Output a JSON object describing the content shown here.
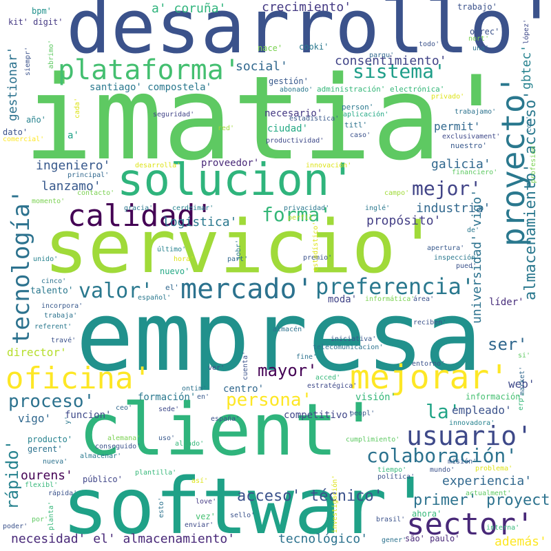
{
  "words": [
    {
      "t": "imatia'",
      "c": "#5ec962"
    },
    {
      "t": "empresa",
      "c": "#21918c"
    },
    {
      "t": "desarrollo'",
      "c": "#3b528b"
    },
    {
      "t": "servicio'",
      "c": "#a0da39"
    },
    {
      "t": "client'",
      "c": "#2fb47c"
    },
    {
      "t": "softwar'",
      "c": "#1fa187"
    },
    {
      "t": "solucion'",
      "c": "#2fb47c"
    },
    {
      "t": "oficina'",
      "c": "#fde725"
    },
    {
      "t": "mejorar'",
      "c": "#fde725"
    },
    {
      "t": "plataforma'",
      "c": "#44bf70"
    },
    {
      "t": "calidad'",
      "c": "#440154"
    },
    {
      "t": "proyecto'",
      "c": "#2a788e"
    },
    {
      "t": "mercado'",
      "c": "#2c728e"
    },
    {
      "t": "preferencia'",
      "c": "#2a788e"
    },
    {
      "t": "usuario'",
      "c": "#3e4989"
    },
    {
      "t": "sector'",
      "c": "#482878"
    },
    {
      "t": "colaboración'",
      "c": "#2c728e"
    },
    {
      "t": "sistema'",
      "c": "#1f9e89"
    },
    {
      "t": "mejor'",
      "c": "#414487"
    },
    {
      "t": "forma'",
      "c": "#35b779"
    },
    {
      "t": "valor'",
      "c": "#2a788e"
    },
    {
      "t": "tecnología'",
      "c": "#2c728e"
    },
    {
      "t": "almacenamiento' acceso'",
      "c": "#2a788e"
    },
    {
      "t": "proceso'",
      "c": "#2c728e"
    },
    {
      "t": "persona'",
      "c": "#fde725"
    },
    {
      "t": "mayor'",
      "c": "#440154"
    },
    {
      "t": "rápido'",
      "c": "#26828e"
    },
    {
      "t": "acceso' técnico'",
      "c": "#3b528b"
    },
    {
      "t": "primer' proyecto'",
      "c": "#2c728e"
    },
    {
      "t": "la'",
      "c": "#20a486"
    },
    {
      "t": "ser'",
      "c": "#31688e"
    },
    {
      "t": "galicia'",
      "c": "#31688e"
    },
    {
      "t": "industria'",
      "c": "#31688e"
    },
    {
      "t": "propósito'",
      "c": "#433e85"
    },
    {
      "t": "logística'",
      "c": "#2a788e"
    },
    {
      "t": "ingeniero'",
      "c": "#38598c"
    },
    {
      "t": "lanzamo'",
      "c": "#38598c"
    },
    {
      "t": "consentimiento'",
      "c": "#414487"
    },
    {
      "t": "social'",
      "c": "#31688e"
    },
    {
      "t": "crecimiento'",
      "c": "#443983"
    },
    {
      "t": "a' coruña'",
      "c": "#2fb47c"
    },
    {
      "t": "gbtec'",
      "c": "#26828e"
    },
    {
      "t": "gestionar'",
      "c": "#2c728e"
    },
    {
      "t": "universidad' vigo'",
      "c": "#2c728e"
    },
    {
      "t": "ourens'",
      "c": "#440154"
    },
    {
      "t": "experiencia'",
      "c": "#31688e"
    },
    {
      "t": "necesidad' el' almacenamiento'",
      "c": "#482878"
    },
    {
      "t": "tecnológico'",
      "c": "#2c728e"
    },
    {
      "t": "además'",
      "c": "#fde725"
    },
    {
      "t": "empleado'",
      "c": "#3b528b"
    },
    {
      "t": "web'",
      "c": "#3e4989"
    },
    {
      "t": "director'",
      "c": "#b5de2b"
    },
    {
      "t": "vigo'",
      "c": "#31688e"
    },
    {
      "t": "permit'",
      "c": "#31688e"
    },
    {
      "t": "santiago' compostela'",
      "c": "#2a788e"
    },
    {
      "t": "necesario'",
      "c": "#443983"
    },
    {
      "t": "ciudad'",
      "c": "#23a983"
    },
    {
      "t": "proveedor'",
      "c": "#482878"
    },
    {
      "t": "talento'",
      "c": "#2a788e"
    },
    {
      "t": "nuevo'",
      "c": "#22a884"
    },
    {
      "t": "moda'",
      "c": "#414487"
    },
    {
      "t": "formación'",
      "c": "#2a788e"
    },
    {
      "t": "centro'",
      "c": "#31688e"
    },
    {
      "t": "visión'",
      "c": "#35b779"
    },
    {
      "t": "competitivo'",
      "c": "#404688"
    },
    {
      "t": "funcion'",
      "c": "#3e4989"
    },
    {
      "t": "información'",
      "c": "#44bf70"
    },
    {
      "t": "líder'",
      "c": "#472d7b"
    },
    {
      "t": "bpm'",
      "c": "#21918c"
    },
    {
      "t": "kit' digit'",
      "c": "#443983"
    },
    {
      "t": "nace'",
      "c": "#7ad151"
    },
    {
      "t": "cooki'",
      "c": "#2a788e"
    },
    {
      "t": "trabajo'",
      "c": "#3b528b"
    },
    {
      "t": "gestión'",
      "c": "#38598c"
    },
    {
      "t": "administración' electrónica'",
      "c": "#35b779"
    },
    {
      "t": "año'",
      "c": "#26828e"
    },
    {
      "t": "a'",
      "c": "#1fa187"
    },
    {
      "t": "dato'",
      "c": "#3b528b"
    },
    {
      "t": "ofrec'",
      "c": "#3b528b"
    },
    {
      "t": "parqu'",
      "c": "#31688e"
    },
    {
      "t": "todo'",
      "c": "#3b528b"
    },
    {
      "t": "nort'",
      "c": "#7ad151"
    },
    {
      "t": "una'",
      "c": "#2c728e"
    },
    {
      "t": "person'",
      "c": "#2a788e"
    },
    {
      "t": "aplicación'",
      "c": "#22a884"
    },
    {
      "t": "abonado'",
      "c": "#2a788e"
    },
    {
      "t": "estadística'",
      "c": "#38598c"
    },
    {
      "t": "titl'",
      "c": "#2c728e"
    },
    {
      "t": "caso'",
      "c": "#3b528b"
    },
    {
      "t": "productividad'",
      "c": "#3e4989"
    },
    {
      "t": "seguridad'",
      "c": "#414487"
    },
    {
      "t": "red'",
      "c": "#a0da39"
    },
    {
      "t": "privado'",
      "c": "#dde318"
    },
    {
      "t": "trabajamo'",
      "c": "#2c728e"
    },
    {
      "t": "exclusivament'",
      "c": "#3e4989"
    },
    {
      "t": "nuestro'",
      "c": "#38598c"
    },
    {
      "t": "innovación'",
      "c": "#dde318"
    },
    {
      "t": "financiero'",
      "c": "#5ec962"
    },
    {
      "t": "campo'",
      "c": "#a0da39"
    },
    {
      "t": "principal'",
      "c": "#31688e"
    },
    {
      "t": "contacto'",
      "c": "#7ad151"
    },
    {
      "t": "desarrolla'",
      "c": "#dde318"
    },
    {
      "t": "comercial'",
      "c": "#fde725"
    },
    {
      "t": "momento'",
      "c": "#7ad151"
    },
    {
      "t": "gracia'",
      "c": "#2a788e"
    },
    {
      "t": "cerdeimar'",
      "c": "#26828e"
    },
    {
      "t": "privacidad'",
      "c": "#2a788e"
    },
    {
      "t": "inglé'",
      "c": "#2a788e"
    },
    {
      "t": "perfil'",
      "c": "#bddf26"
    },
    {
      "t": "de'",
      "c": "#2a788e"
    },
    {
      "t": "apertura'",
      "c": "#38598c"
    },
    {
      "t": "inspección'",
      "c": "#2a788e"
    },
    {
      "t": "pued'",
      "c": "#3b528b"
    },
    {
      "t": "premio'",
      "c": "#3b528b"
    },
    {
      "t": "último'",
      "c": "#26828e"
    },
    {
      "t": "hora'",
      "c": "#dde318"
    },
    {
      "t": "part'",
      "c": "#31688e"
    },
    {
      "t": "unido'",
      "c": "#26828e"
    },
    {
      "t": "cinco'",
      "c": "#2c728e"
    },
    {
      "t": "el'",
      "c": "#31688e"
    },
    {
      "t": "español'",
      "c": "#2a788e"
    },
    {
      "t": "informática'",
      "c": "#7ad151"
    },
    {
      "t": "área'",
      "c": "#3b528b"
    },
    {
      "t": "incorpora'",
      "c": "#38598c"
    },
    {
      "t": "trabaja'",
      "c": "#2c728e"
    },
    {
      "t": "referent'",
      "c": "#2a788e"
    },
    {
      "t": "reciben'",
      "c": "#3b528b"
    },
    {
      "t": "almacén'",
      "c": "#2c728e"
    },
    {
      "t": "iniciativa'",
      "c": "#38598c"
    },
    {
      "t": "telecomunicacion'",
      "c": "#2c728e"
    },
    {
      "t": "travé'",
      "c": "#3b528b"
    },
    {
      "t": "fine'",
      "c": "#2c728e"
    },
    {
      "t": "si'",
      "c": "#5ec962"
    },
    {
      "t": "ver'",
      "c": "#3e4989"
    },
    {
      "t": "acced'",
      "c": "#35b779"
    },
    {
      "t": "estratégica'",
      "c": "#3e4989"
    },
    {
      "t": "entorno'",
      "c": "#3b528b"
    },
    {
      "t": "market'",
      "c": "#31688e"
    },
    {
      "t": "ontim'",
      "c": "#2c728e"
    },
    {
      "t": "en'",
      "c": "#38598c"
    },
    {
      "t": "ceo'",
      "c": "#31688e"
    },
    {
      "t": "sede'",
      "c": "#3e4989"
    },
    {
      "t": "españa'",
      "c": "#3b528b"
    },
    {
      "t": "peopl'",
      "c": "#38598c"
    },
    {
      "t": "innovadora'",
      "c": "#26828e"
    },
    {
      "t": "producto'",
      "c": "#26828e"
    },
    {
      "t": "gerent'",
      "c": "#2c728e"
    },
    {
      "t": "alemana'",
      "c": "#7ad151"
    },
    {
      "t": "conseguido'",
      "c": "#3b528b"
    },
    {
      "t": "almacenar'",
      "c": "#2a788e"
    },
    {
      "t": "uso'",
      "c": "#38598c"
    },
    {
      "t": "aliado'",
      "c": "#35b779"
    },
    {
      "t": "cumplimiento'",
      "c": "#5ec962"
    },
    {
      "t": "misión'",
      "c": "#38598c"
    },
    {
      "t": "problema'",
      "c": "#dde318"
    },
    {
      "t": "nueva'",
      "c": "#2c728e"
    },
    {
      "t": "público'",
      "c": "#404688"
    },
    {
      "t": "plantilla'",
      "c": "#35b779"
    },
    {
      "t": "flexibl'",
      "c": "#35b779"
    },
    {
      "t": "rápida'",
      "c": "#3b528b"
    },
    {
      "t": "así'",
      "c": "#dde318"
    },
    {
      "t": "mundo'",
      "c": "#3b528b"
    },
    {
      "t": "tiempo'",
      "c": "#35b779"
    },
    {
      "t": "política'",
      "c": "#3b528b"
    },
    {
      "t": "actualment'",
      "c": "#5ec962"
    },
    {
      "t": "love'",
      "c": "#443983"
    },
    {
      "t": "sello'",
      "c": "#3b528b"
    },
    {
      "t": "vez'",
      "c": "#44bf70"
    },
    {
      "t": "enviar'",
      "c": "#3e4989"
    },
    {
      "t": "ahora'",
      "c": "#35b779"
    },
    {
      "t": "brasil'",
      "c": "#3b528b"
    },
    {
      "t": "são' paulo'",
      "c": "#482878"
    },
    {
      "t": "interna'",
      "c": "#35b779"
    },
    {
      "t": "gener'",
      "c": "#2c728e"
    },
    {
      "t": "por'",
      "c": "#5ec962"
    },
    {
      "t": "poder'",
      "c": "#3b528b"
    },
    {
      "t": "siempr'",
      "c": "#3b528b"
    },
    {
      "t": "abrimo'",
      "c": "#5ec962"
    },
    {
      "t": "lópez'",
      "c": "#3e4989"
    },
    {
      "t": "con'",
      "c": "#2c728e"
    },
    {
      "t": "profesion'",
      "c": "#7ad151"
    },
    {
      "t": "cada'",
      "c": "#dde318"
    },
    {
      "t": "estadístico'",
      "c": "#dde318"
    },
    {
      "t": "sobr'",
      "c": "#2a788e"
    },
    {
      "t": "cuenta'",
      "c": "#3b528b"
    },
    {
      "t": "erp'",
      "c": "#35b779"
    },
    {
      "t": "y'",
      "c": "#2a788e"
    },
    {
      "t": "esto'",
      "c": "#2c728e"
    },
    {
      "t": "planta'",
      "c": "#35b779"
    },
    {
      "t": "investigación'",
      "c": "#dde318"
    }
  ]
}
